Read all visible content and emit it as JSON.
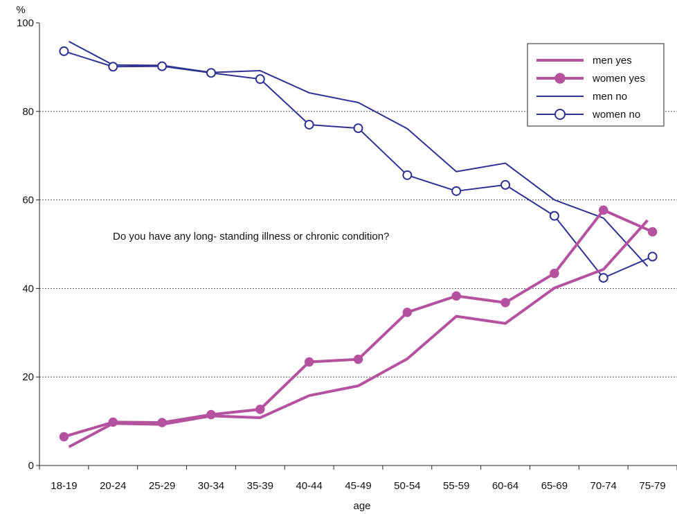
{
  "chart_data": {
    "type": "line",
    "title": "",
    "xlabel": "age",
    "ylabel": "%",
    "ylim": [
      0,
      100
    ],
    "yticks": [
      0,
      20,
      40,
      60,
      80,
      100
    ],
    "grid": "horizontal-dotted",
    "legend_position": "top-right",
    "annotation": "Do you have any long- standing illness or chronic condition?",
    "categories": [
      "18-19",
      "20-24",
      "25-29",
      "30-34",
      "35-39",
      "40-44",
      "45-49",
      "50-54",
      "55-59",
      "60-64",
      "65-69",
      "70-74",
      "75-79"
    ],
    "series": [
      {
        "name": "men yes",
        "color": "#B5529F",
        "style": "thick-line",
        "x_offsets": [
          0.1,
          0,
          0,
          0,
          0,
          0,
          0,
          0,
          0,
          0,
          0,
          0,
          -0.1
        ],
        "values": [
          4.2,
          9.5,
          9.3,
          11.2,
          10.8,
          15.8,
          18.0,
          24.1,
          33.7,
          32.1,
          40.1,
          44.3,
          55.4
        ]
      },
      {
        "name": "women yes",
        "color": "#B5529F",
        "style": "thick-line-filled-marker",
        "x_offsets": [
          0,
          0,
          0,
          0,
          0,
          0,
          0,
          0,
          0,
          0,
          0,
          0,
          0
        ],
        "values": [
          6.5,
          9.8,
          9.7,
          11.5,
          12.7,
          23.4,
          24.0,
          34.6,
          38.3,
          36.8,
          43.4,
          57.7,
          52.8
        ]
      },
      {
        "name": "men no",
        "color": "#2E3192",
        "style": "thin-line",
        "x_offsets": [
          0.1,
          0,
          0,
          0,
          0,
          0,
          0,
          0,
          0,
          0,
          0,
          0,
          -0.1
        ],
        "values": [
          95.8,
          90.5,
          90.4,
          88.8,
          89.2,
          84.2,
          82.0,
          76.1,
          66.4,
          68.3,
          60.0,
          55.9,
          45.0
        ]
      },
      {
        "name": "women no",
        "color": "#2E3192",
        "style": "thin-line-open-marker",
        "x_offsets": [
          0,
          0,
          0,
          0,
          0,
          0,
          0,
          0,
          0,
          0,
          0,
          0,
          0
        ],
        "values": [
          93.6,
          90.1,
          90.2,
          88.7,
          87.3,
          77.0,
          76.2,
          65.6,
          62.0,
          63.4,
          56.4,
          42.4,
          47.2
        ]
      }
    ]
  }
}
